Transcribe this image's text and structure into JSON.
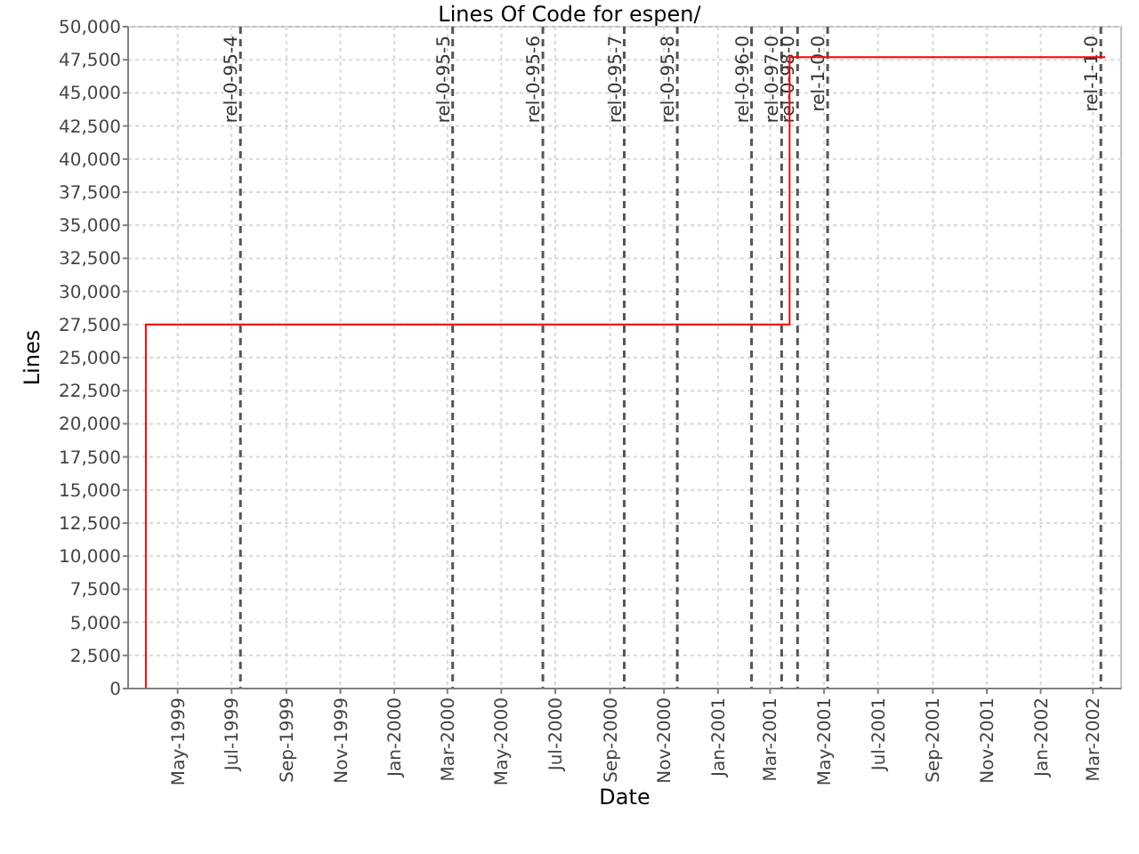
{
  "chart_data": {
    "type": "step",
    "title": "Lines Of Code for espen/",
    "xlabel": "Date",
    "ylabel": "Lines",
    "x": [
      "1999-03-26",
      "1999-03-26",
      "2001-03-23",
      "2002-03-15"
    ],
    "series": [
      {
        "color": "#ff0000",
        "values": [
          0,
          27500,
          47700,
          47700
        ]
      }
    ],
    "xlim": [
      "1999-03-06",
      "2002-04-02"
    ],
    "xticks": [
      {
        "value": "1999-05-01",
        "label": "May-1999"
      },
      {
        "value": "1999-07-01",
        "label": "Jul-1999"
      },
      {
        "value": "1999-09-01",
        "label": "Sep-1999"
      },
      {
        "value": "1999-11-01",
        "label": "Nov-1999"
      },
      {
        "value": "2000-01-01",
        "label": "Jan-2000"
      },
      {
        "value": "2000-03-01",
        "label": "Mar-2000"
      },
      {
        "value": "2000-05-01",
        "label": "May-2000"
      },
      {
        "value": "2000-07-01",
        "label": "Jul-2000"
      },
      {
        "value": "2000-09-01",
        "label": "Sep-2000"
      },
      {
        "value": "2000-11-01",
        "label": "Nov-2000"
      },
      {
        "value": "2001-01-01",
        "label": "Jan-2001"
      },
      {
        "value": "2001-03-01",
        "label": "Mar-2001"
      },
      {
        "value": "2001-05-01",
        "label": "May-2001"
      },
      {
        "value": "2001-07-01",
        "label": "Jul-2001"
      },
      {
        "value": "2001-09-01",
        "label": "Sep-2001"
      },
      {
        "value": "2001-11-01",
        "label": "Nov-2001"
      },
      {
        "value": "2002-01-01",
        "label": "Jan-2002"
      },
      {
        "value": "2002-03-01",
        "label": "Mar-2002"
      }
    ],
    "ylim": [
      0,
      50000
    ],
    "yticks": [
      0,
      {
        "value": 2500,
        "label": "2,500"
      },
      {
        "value": 5000,
        "label": "5,000"
      },
      {
        "value": 7500,
        "label": "7,500"
      },
      {
        "value": 10000,
        "label": "10,000"
      },
      {
        "value": 12500,
        "label": "12,500"
      },
      {
        "value": 15000,
        "label": "15,000"
      },
      {
        "value": 17500,
        "label": "17,500"
      },
      {
        "value": 20000,
        "label": "20,000"
      },
      {
        "value": 22500,
        "label": "22,500"
      },
      {
        "value": 25000,
        "label": "25,000"
      },
      {
        "value": 27500,
        "label": "27,500"
      },
      {
        "value": 30000,
        "label": "30,000"
      },
      {
        "value": 32500,
        "label": "32,500"
      },
      {
        "value": 35000,
        "label": "35,000"
      },
      {
        "value": 37500,
        "label": "37,500"
      },
      {
        "value": 40000,
        "label": "40,000"
      },
      {
        "value": 42500,
        "label": "42,500"
      },
      {
        "value": 45000,
        "label": "45,000"
      },
      {
        "value": 47500,
        "label": "47,500"
      },
      {
        "value": 50000,
        "label": "50,000"
      }
    ],
    "grid": true,
    "line_style": "solid",
    "ref_lines": [
      {
        "axis": "x",
        "value": "1999-07-11",
        "label": "rel-0-95-4",
        "color": "#555555",
        "line_style": "dashed"
      },
      {
        "axis": "x",
        "value": "2000-03-07",
        "label": "rel-0-95-5",
        "color": "#555555",
        "line_style": "dashed"
      },
      {
        "axis": "x",
        "value": "2000-06-17",
        "label": "rel-0-95-6",
        "color": "#555555",
        "line_style": "dashed"
      },
      {
        "axis": "x",
        "value": "2000-09-17",
        "label": "rel-0-95-7",
        "color": "#555555",
        "line_style": "dashed"
      },
      {
        "axis": "x",
        "value": "2000-11-16",
        "label": "rel-0-95-8",
        "color": "#555555",
        "line_style": "dashed"
      },
      {
        "axis": "x",
        "value": "2001-02-08",
        "label": "rel-0-96-0",
        "color": "#555555",
        "line_style": "dashed"
      },
      {
        "axis": "x",
        "value": "2001-03-14",
        "label": "rel-0-97-0",
        "color": "#555555",
        "line_style": "dashed"
      },
      {
        "axis": "x",
        "value": "2001-04-01",
        "label": "rel-0-98-0",
        "color": "#555555",
        "line_style": "dashed"
      },
      {
        "axis": "x",
        "value": "2001-05-05",
        "label": "rel-1-0-0",
        "color": "#555555",
        "line_style": "dashed"
      },
      {
        "axis": "x",
        "value": "2002-03-10",
        "label": "rel-1-1-0",
        "color": "#555555",
        "line_style": "dashed"
      }
    ]
  }
}
